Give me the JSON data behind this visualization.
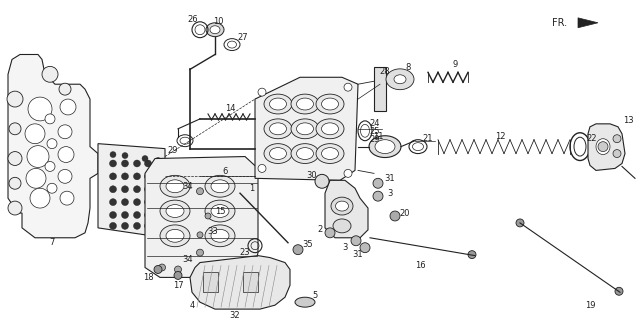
{
  "bg_color": "#ffffff",
  "line_color": "#222222",
  "figsize": [
    6.4,
    3.2
  ],
  "dpi": 100
}
